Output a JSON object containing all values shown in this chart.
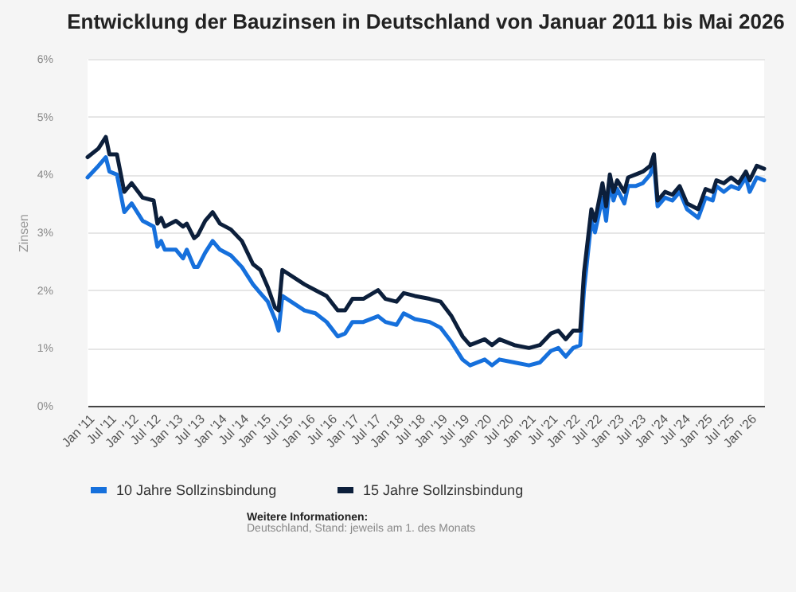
{
  "chart_data": {
    "type": "line",
    "title": "Entwicklung der Bauzinsen in Deutschland von Januar 2011 bis Mai 2026",
    "ylabel": "Zinsen",
    "x": [
      "2011-01",
      "2011-04",
      "2011-06",
      "2011-07",
      "2011-09",
      "2011-11",
      "2012-01",
      "2012-04",
      "2012-07",
      "2012-08",
      "2012-09",
      "2012-10",
      "2013-01",
      "2013-03",
      "2013-04",
      "2013-06",
      "2013-07",
      "2013-09",
      "2013-11",
      "2014-01",
      "2014-04",
      "2014-07",
      "2014-10",
      "2014-12",
      "2015-02",
      "2015-04",
      "2015-05",
      "2015-06",
      "2015-12",
      "2016-03",
      "2016-06",
      "2016-09",
      "2016-11",
      "2017-01",
      "2017-04",
      "2017-08",
      "2017-10",
      "2018-01",
      "2018-03",
      "2018-06",
      "2018-10",
      "2019-01",
      "2019-04",
      "2019-07",
      "2019-09",
      "2020-01",
      "2020-03",
      "2020-05",
      "2020-09",
      "2021-01",
      "2021-04",
      "2021-07",
      "2021-09",
      "2021-11",
      "2022-01",
      "2022-03",
      "2022-04",
      "2022-06",
      "2022-07",
      "2022-09",
      "2022-10",
      "2022-11",
      "2022-12",
      "2023-01",
      "2023-03",
      "2023-04",
      "2023-06",
      "2023-08",
      "2023-10",
      "2023-11",
      "2023-12",
      "2024-02",
      "2024-04",
      "2024-06",
      "2024-08",
      "2024-11",
      "2025-01",
      "2025-03",
      "2025-04",
      "2025-06",
      "2025-08",
      "2025-10",
      "2025-12",
      "2026-01",
      "2026-03",
      "2026-05"
    ],
    "series": [
      {
        "name": "10 Jahre Sollzinsbindung",
        "color": "#1670dc",
        "values": [
          3.95,
          4.15,
          4.3,
          4.05,
          4.0,
          3.35,
          3.5,
          3.2,
          3.1,
          2.75,
          2.85,
          2.7,
          2.7,
          2.55,
          2.7,
          2.4,
          2.4,
          2.65,
          2.85,
          2.7,
          2.6,
          2.4,
          2.1,
          1.95,
          1.8,
          1.5,
          1.3,
          1.9,
          1.65,
          1.6,
          1.45,
          1.2,
          1.25,
          1.45,
          1.45,
          1.55,
          1.45,
          1.4,
          1.6,
          1.5,
          1.45,
          1.35,
          1.1,
          0.8,
          0.7,
          0.8,
          0.7,
          0.8,
          0.75,
          0.7,
          0.75,
          0.95,
          1.0,
          0.85,
          1.0,
          1.05,
          2.0,
          3.2,
          3.0,
          3.6,
          3.2,
          3.85,
          3.55,
          3.75,
          3.5,
          3.8,
          3.8,
          3.85,
          4.0,
          4.2,
          3.45,
          3.6,
          3.55,
          3.7,
          3.4,
          3.25,
          3.6,
          3.55,
          3.8,
          3.7,
          3.8,
          3.75,
          3.95,
          3.7,
          3.95,
          3.9
        ]
      },
      {
        "name": "15 Jahre Sollzinsbindung",
        "color": "#0c1f3b",
        "values": [
          4.3,
          4.45,
          4.65,
          4.35,
          4.35,
          3.7,
          3.85,
          3.6,
          3.55,
          3.15,
          3.25,
          3.1,
          3.2,
          3.1,
          3.15,
          2.9,
          2.95,
          3.2,
          3.35,
          3.15,
          3.05,
          2.85,
          2.45,
          2.35,
          2.05,
          1.7,
          1.65,
          2.35,
          2.1,
          2.0,
          1.9,
          1.65,
          1.65,
          1.85,
          1.85,
          2.0,
          1.85,
          1.8,
          1.95,
          1.9,
          1.85,
          1.8,
          1.55,
          1.2,
          1.05,
          1.15,
          1.05,
          1.15,
          1.05,
          1.0,
          1.05,
          1.25,
          1.3,
          1.15,
          1.3,
          1.3,
          2.3,
          3.4,
          3.2,
          3.85,
          3.45,
          4.0,
          3.7,
          3.9,
          3.7,
          3.95,
          4.0,
          4.05,
          4.15,
          4.35,
          3.55,
          3.7,
          3.65,
          3.8,
          3.5,
          3.4,
          3.75,
          3.7,
          3.9,
          3.85,
          3.95,
          3.85,
          4.05,
          3.9,
          4.15,
          4.1
        ]
      }
    ],
    "xlim": [
      "2011-01",
      "2026-05"
    ],
    "xticks": [
      {
        "value": "2011-01",
        "label": "Jan '11"
      },
      {
        "value": "2011-07",
        "label": "Jul '11"
      },
      {
        "value": "2012-01",
        "label": "Jan '12"
      },
      {
        "value": "2012-07",
        "label": "Jul '12"
      },
      {
        "value": "2013-01",
        "label": "Jan '13"
      },
      {
        "value": "2013-07",
        "label": "Jul '13"
      },
      {
        "value": "2014-01",
        "label": "Jan '14"
      },
      {
        "value": "2014-07",
        "label": "Jul '14"
      },
      {
        "value": "2015-01",
        "label": "Jan '15"
      },
      {
        "value": "2015-07",
        "label": "Jul '15"
      },
      {
        "value": "2016-01",
        "label": "Jan '16"
      },
      {
        "value": "2016-07",
        "label": "Jul '16"
      },
      {
        "value": "2017-01",
        "label": "Jan '17"
      },
      {
        "value": "2017-07",
        "label": "Jul '17"
      },
      {
        "value": "2018-01",
        "label": "Jan '18"
      },
      {
        "value": "2018-07",
        "label": "Jul '18"
      },
      {
        "value": "2019-01",
        "label": "Jan '19"
      },
      {
        "value": "2019-07",
        "label": "Jul '19"
      },
      {
        "value": "2020-01",
        "label": "Jan '20"
      },
      {
        "value": "2020-07",
        "label": "Jul '20"
      },
      {
        "value": "2021-01",
        "label": "Jan '21"
      },
      {
        "value": "2021-07",
        "label": "Jul '21"
      },
      {
        "value": "2022-01",
        "label": "Jan '22"
      },
      {
        "value": "2022-07",
        "label": "Jul '22"
      },
      {
        "value": "2023-01",
        "label": "Jan '23"
      },
      {
        "value": "2023-07",
        "label": "Jul '23"
      },
      {
        "value": "2024-01",
        "label": "Jan '24"
      },
      {
        "value": "2024-07",
        "label": "Jul '24"
      },
      {
        "value": "2025-01",
        "label": "Jan '25"
      },
      {
        "value": "2025-07",
        "label": "Jul '25"
      },
      {
        "value": "2026-01",
        "label": "Jan '26"
      }
    ],
    "ylim": [
      0,
      6
    ],
    "yticks": [
      {
        "value": 0,
        "label": "0%"
      },
      {
        "value": 1,
        "label": "1%"
      },
      {
        "value": 2,
        "label": "2%"
      },
      {
        "value": 3,
        "label": "3%"
      },
      {
        "value": 4,
        "label": "4%"
      },
      {
        "value": 5,
        "label": "5%"
      },
      {
        "value": 6,
        "label": "6%"
      }
    ],
    "grid": "y",
    "legend": "bottom",
    "line_style": "solid",
    "annotations": [
      "Weitere Informationen:",
      "Deutschland, Stand: jeweils am 1. des Monats"
    ]
  }
}
